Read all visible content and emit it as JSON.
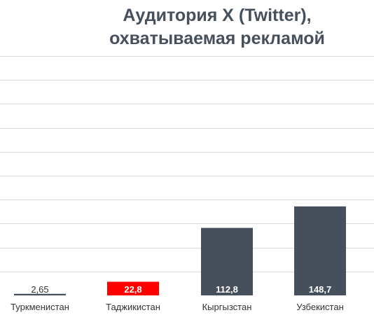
{
  "chart_data": {
    "type": "bar",
    "title_lines": [
      "Аудитория X (Twitter),",
      "охватываемая рекламой"
    ],
    "categories": [
      "Туркменистан",
      "Таджикистан",
      "Кыргызстан",
      "Узбекистан"
    ],
    "values": [
      2.65,
      22.8,
      112.8,
      148.7
    ],
    "value_labels": [
      "2,65",
      "22,8",
      "112,8",
      "148,7"
    ],
    "bar_colors": [
      "#46505c",
      "#ff0000",
      "#46505c",
      "#46505c"
    ],
    "label_colors": [
      "#333333",
      "#ffffff",
      "#ffffff",
      "#ffffff"
    ],
    "ylim": [
      0,
      400
    ],
    "grid": true,
    "legend": "none"
  }
}
